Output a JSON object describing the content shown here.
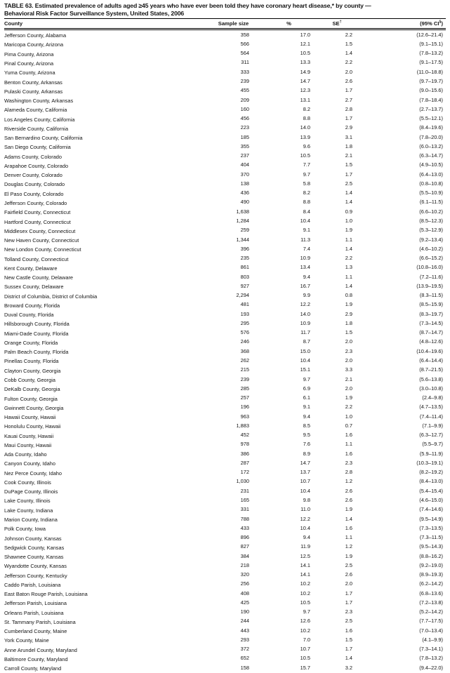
{
  "table": {
    "title_line1": "TABLE 63. Estimated prevalence of adults aged ≥45 years who have ever been told they have coronary heart disease,* by county —",
    "title_line2": "Behavioral Risk Factor Surveillance System, United States, 2006",
    "columns": {
      "county": "County",
      "sample_size": "Sample size",
      "percent": "%",
      "se": "SE",
      "se_sup": "†",
      "ci_open": "(95% CI",
      "ci_sup": "§",
      "ci_close": ")"
    },
    "rows": [
      [
        "Jefferson County, Alabama",
        "358",
        "17.0",
        "2.2",
        "(12.6–21.4)"
      ],
      [
        "Maricopa County, Arizona",
        "566",
        "12.1",
        "1.5",
        "(9.1–15.1)"
      ],
      [
        "Pima County, Arizona",
        "564",
        "10.5",
        "1.4",
        "(7.8–13.2)"
      ],
      [
        "Pinal County, Arizona",
        "311",
        "13.3",
        "2.2",
        "(9.1–17.5)"
      ],
      [
        "Yuma County, Arizona",
        "333",
        "14.9",
        "2.0",
        "(11.0–18.8)"
      ],
      [
        "Benton County, Arkansas",
        "239",
        "14.7",
        "2.6",
        "(9.7–19.7)"
      ],
      [
        "Pulaski County, Arkansas",
        "455",
        "12.3",
        "1.7",
        "(9.0–15.6)"
      ],
      [
        "Washington County, Arkansas",
        "209",
        "13.1",
        "2.7",
        "(7.8–18.4)"
      ],
      [
        "Alameda County, California",
        "160",
        "8.2",
        "2.8",
        "(2.7–13.7)"
      ],
      [
        "Los Angeles County, California",
        "456",
        "8.8",
        "1.7",
        "(5.5–12.1)"
      ],
      [
        "Riverside County, California",
        "223",
        "14.0",
        "2.9",
        "(8.4–19.6)"
      ],
      [
        "San Bernardino County, California",
        "185",
        "13.9",
        "3.1",
        "(7.8–20.0)"
      ],
      [
        "San Diego County, California",
        "355",
        "9.6",
        "1.8",
        "(6.0–13.2)"
      ],
      [
        "Adams County, Colorado",
        "237",
        "10.5",
        "2.1",
        "(6.3–14.7)"
      ],
      [
        "Arapahoe County, Colorado",
        "404",
        "7.7",
        "1.5",
        "(4.9–10.5)"
      ],
      [
        "Denver County, Colorado",
        "370",
        "9.7",
        "1.7",
        "(6.4–13.0)"
      ],
      [
        "Douglas County, Colorado",
        "138",
        "5.8",
        "2.5",
        "(0.8–10.8)"
      ],
      [
        "El Paso County, Colorado",
        "436",
        "8.2",
        "1.4",
        "(5.5–10.9)"
      ],
      [
        "Jefferson County, Colorado",
        "490",
        "8.8",
        "1.4",
        "(6.1–11.5)"
      ],
      [
        "Fairfield County, Connecticut",
        "1,638",
        "8.4",
        "0.9",
        "(6.6–10.2)"
      ],
      [
        "Hartford County, Connecticut",
        "1,284",
        "10.4",
        "1.0",
        "(8.5–12.3)"
      ],
      [
        "Middlesex County, Connecticut",
        "259",
        "9.1",
        "1.9",
        "(5.3–12.9)"
      ],
      [
        "New Haven County, Connecticut",
        "1,344",
        "11.3",
        "1.1",
        "(9.2–13.4)"
      ],
      [
        "New London County, Connecticut",
        "396",
        "7.4",
        "1.4",
        "(4.6–10.2)"
      ],
      [
        "Tolland County, Connecticut",
        "235",
        "10.9",
        "2.2",
        "(6.6–15.2)"
      ],
      [
        "Kent County, Delaware",
        "861",
        "13.4",
        "1.3",
        "(10.8–16.0)"
      ],
      [
        "New Castle County, Delaware",
        "803",
        "9.4",
        "1.1",
        "(7.2–11.6)"
      ],
      [
        "Sussex County, Delaware",
        "927",
        "16.7",
        "1.4",
        "(13.9–19.5)"
      ],
      [
        "District of Columbia, District of Columbia",
        "2,294",
        "9.9",
        "0.8",
        "(8.3–11.5)"
      ],
      [
        "Broward County, Florida",
        "481",
        "12.2",
        "1.9",
        "(8.5–15.9)"
      ],
      [
        "Duval County, Florida",
        "193",
        "14.0",
        "2.9",
        "(8.3–19.7)"
      ],
      [
        "Hillsborough County, Florida",
        "295",
        "10.9",
        "1.8",
        "(7.3–14.5)"
      ],
      [
        "Miami-Dade County, Florida",
        "576",
        "11.7",
        "1.5",
        "(8.7–14.7)"
      ],
      [
        "Orange County, Florida",
        "246",
        "8.7",
        "2.0",
        "(4.8–12.6)"
      ],
      [
        "Palm Beach County, Florida",
        "368",
        "15.0",
        "2.3",
        "(10.4–19.6)"
      ],
      [
        "Pinellas County, Florida",
        "262",
        "10.4",
        "2.0",
        "(6.4–14.4)"
      ],
      [
        "Clayton County, Georgia",
        "215",
        "15.1",
        "3.3",
        "(8.7–21.5)"
      ],
      [
        "Cobb County, Georgia",
        "239",
        "9.7",
        "2.1",
        "(5.6–13.8)"
      ],
      [
        "DeKalb County, Georgia",
        "285",
        "6.9",
        "2.0",
        "(3.0–10.8)"
      ],
      [
        "Fulton County, Georgia",
        "257",
        "6.1",
        "1.9",
        "(2.4–9.8)"
      ],
      [
        "Gwinnett County, Georgia",
        "196",
        "9.1",
        "2.2",
        "(4.7–13.5)"
      ],
      [
        "Hawaii County, Hawaii",
        "963",
        "9.4",
        "1.0",
        "(7.4–11.4)"
      ],
      [
        "Honolulu County, Hawaii",
        "1,883",
        "8.5",
        "0.7",
        "(7.1–9.9)"
      ],
      [
        "Kauai County, Hawaii",
        "452",
        "9.5",
        "1.6",
        "(6.3–12.7)"
      ],
      [
        "Maui County, Hawaii",
        "978",
        "7.6",
        "1.1",
        "(5.5–9.7)"
      ],
      [
        "Ada County, Idaho",
        "386",
        "8.9",
        "1.6",
        "(5.9–11.9)"
      ],
      [
        "Canyon County, Idaho",
        "287",
        "14.7",
        "2.3",
        "(10.3–19.1)"
      ],
      [
        "Nez Perce County, Idaho",
        "172",
        "13.7",
        "2.8",
        "(8.2–19.2)"
      ],
      [
        "Cook County, Illinois",
        "1,030",
        "10.7",
        "1.2",
        "(8.4–13.0)"
      ],
      [
        "DuPage County, Illinois",
        "231",
        "10.4",
        "2.6",
        "(5.4–15.4)"
      ],
      [
        "Lake County, Illinois",
        "165",
        "9.8",
        "2.6",
        "(4.6–15.0)"
      ],
      [
        "Lake County, Indiana",
        "331",
        "11.0",
        "1.9",
        "(7.4–14.6)"
      ],
      [
        "Marion County, Indiana",
        "788",
        "12.2",
        "1.4",
        "(9.5–14.9)"
      ],
      [
        "Polk County, Iowa",
        "433",
        "10.4",
        "1.6",
        "(7.3–13.5)"
      ],
      [
        "Johnson County, Kansas",
        "896",
        "9.4",
        "1.1",
        "(7.3–11.5)"
      ],
      [
        "Sedgwick County, Kansas",
        "827",
        "11.9",
        "1.2",
        "(9.5–14.3)"
      ],
      [
        "Shawnee County, Kansas",
        "384",
        "12.5",
        "1.9",
        "(8.8–16.2)"
      ],
      [
        "Wyandotte County, Kansas",
        "218",
        "14.1",
        "2.5",
        "(9.2–19.0)"
      ],
      [
        "Jefferson County, Kentucky",
        "320",
        "14.1",
        "2.6",
        "(8.9–19.3)"
      ],
      [
        "Caddo Parish, Louisiana",
        "256",
        "10.2",
        "2.0",
        "(6.2–14.2)"
      ],
      [
        "East Baton Rouge Parish, Louisiana",
        "408",
        "10.2",
        "1.7",
        "(6.8–13.6)"
      ],
      [
        "Jefferson Parish, Louisiana",
        "425",
        "10.5",
        "1.7",
        "(7.2–13.8)"
      ],
      [
        "Orleans Parish, Louisiana",
        "190",
        "9.7",
        "2.3",
        "(5.2–14.2)"
      ],
      [
        "St. Tammany Parish, Louisiana",
        "244",
        "12.6",
        "2.5",
        "(7.7–17.5)"
      ],
      [
        "Cumberland County, Maine",
        "443",
        "10.2",
        "1.6",
        "(7.0–13.4)"
      ],
      [
        "York County, Maine",
        "293",
        "7.0",
        "1.5",
        "(4.1–9.9)"
      ],
      [
        "Anne Arundel County, Maryland",
        "372",
        "10.7",
        "1.7",
        "(7.3–14.1)"
      ],
      [
        "Baltimore County, Maryland",
        "652",
        "10.5",
        "1.4",
        "(7.8–13.2)"
      ],
      [
        "Carroll County, Maryland",
        "158",
        "15.7",
        "3.2",
        "(9.4–22.0)"
      ]
    ]
  }
}
